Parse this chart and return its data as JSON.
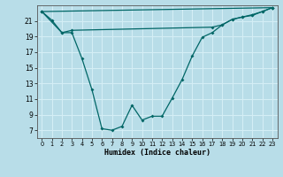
{
  "background_color": "#b8dde8",
  "grid_color": "#d4eef5",
  "line_color": "#006666",
  "xlabel": "Humidex (Indice chaleur)",
  "xlim": [
    -0.5,
    23.5
  ],
  "ylim": [
    6,
    23
  ],
  "yticks": [
    7,
    9,
    11,
    13,
    15,
    17,
    19,
    21
  ],
  "xticks": [
    0,
    1,
    2,
    3,
    4,
    5,
    6,
    7,
    8,
    9,
    10,
    11,
    12,
    13,
    14,
    15,
    16,
    17,
    18,
    19,
    20,
    21,
    22,
    23
  ],
  "line1_x": [
    0,
    1,
    2,
    3,
    4,
    5,
    6,
    7,
    8,
    9,
    10,
    11,
    12,
    13,
    14,
    15,
    16,
    17,
    18,
    19,
    20,
    21,
    22,
    23
  ],
  "line1_y": [
    22.2,
    21.1,
    19.5,
    19.5,
    16.2,
    12.2,
    7.2,
    7.0,
    7.5,
    10.2,
    8.3,
    8.8,
    8.8,
    11.1,
    13.5,
    16.5,
    18.9,
    19.5,
    20.5,
    21.2,
    21.5,
    21.7,
    22.2,
    22.7
  ],
  "line2_x": [
    0,
    2,
    3,
    17,
    18,
    19,
    20,
    21,
    22,
    23
  ],
  "line2_y": [
    22.2,
    19.5,
    19.8,
    20.2,
    20.5,
    21.2,
    21.5,
    21.8,
    22.2,
    22.7
  ],
  "line3_x": [
    0,
    23
  ],
  "line3_y": [
    22.2,
    22.7
  ]
}
